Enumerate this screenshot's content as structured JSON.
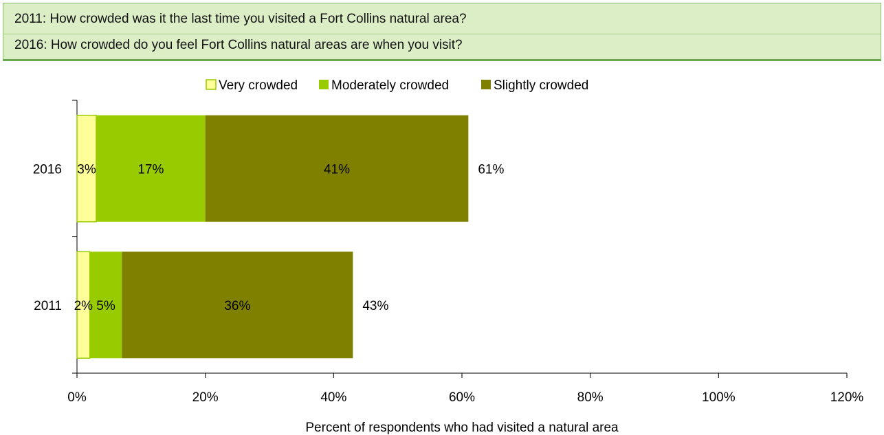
{
  "header": {
    "question_2011": "2011: How crowded was it the last time you visited a Fort Collins natural area?",
    "question_2016": "2016: How crowded do you feel Fort Collins natural areas are when you visit?"
  },
  "chart_data": {
    "type": "bar",
    "orientation": "horizontal",
    "stacked": true,
    "categories": [
      "2016",
      "2011"
    ],
    "series": [
      {
        "name": "Very crowded",
        "values": [
          3,
          2
        ],
        "labels": [
          "3%",
          "2%"
        ],
        "color": "#ffff99"
      },
      {
        "name": "Moderately crowded",
        "values": [
          17,
          5
        ],
        "labels": [
          "17%",
          "5%"
        ],
        "color": "#99cc00"
      },
      {
        "name": "Slightly crowded",
        "values": [
          41,
          36
        ],
        "labels": [
          "41%",
          "36%"
        ],
        "color": "#808000"
      }
    ],
    "totals": [
      61,
      43
    ],
    "total_labels": [
      "61%",
      "43%"
    ],
    "xlabel": "Percent of respondents who had visited a natural area",
    "xlim": [
      0,
      120
    ],
    "xticks": [
      0,
      20,
      40,
      60,
      80,
      100,
      120
    ],
    "xtick_labels": [
      "0%",
      "20%",
      "40%",
      "60%",
      "80%",
      "100%",
      "120%"
    ],
    "legend_position": "top",
    "grid": false
  }
}
